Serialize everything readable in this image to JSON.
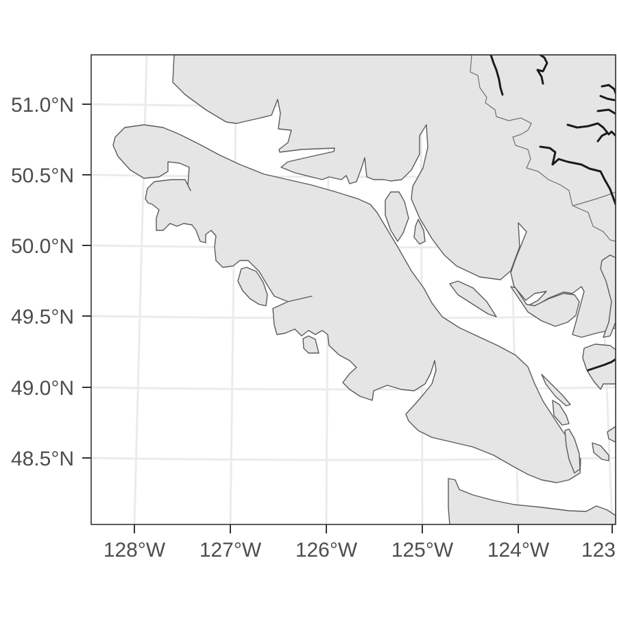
{
  "map": {
    "projection": "geographic (graticule curved)",
    "latitude_labels": [
      "51.0°N",
      "50.5°N",
      "50.0°N",
      "49.5°N",
      "49.0°N",
      "48.5°N"
    ],
    "longitude_labels": [
      "128°W",
      "127°W",
      "126°W",
      "125°W",
      "124°W",
      "123"
    ],
    "colors": {
      "land_fill": "#e5e5e5",
      "land_outline": "#5a5a5a",
      "grid": "#ebebeb",
      "river": "#1a1a1a",
      "panel_border": "#333333",
      "label": "#4d4d4d"
    },
    "features": [
      "Vancouver Island",
      "mainland British Columbia",
      "Olympic Peninsula",
      "islands",
      "rivers",
      "internal boundaries"
    ]
  }
}
